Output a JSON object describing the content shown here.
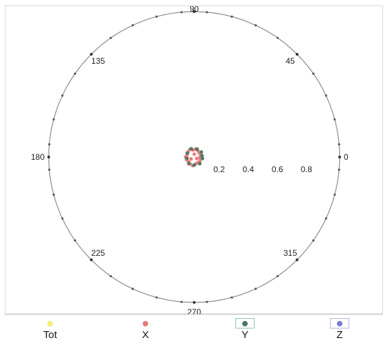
{
  "chart_data": {
    "type": "polar-scatter",
    "angle_ticks": [
      {
        "angle": 0,
        "label": "0"
      },
      {
        "angle": 45,
        "label": "45"
      },
      {
        "angle": 90,
        "label": "90"
      },
      {
        "angle": 135,
        "label": "135"
      },
      {
        "angle": 180,
        "label": "180"
      },
      {
        "angle": 225,
        "label": "225"
      },
      {
        "angle": 270,
        "label": "270"
      },
      {
        "angle": 315,
        "label": "315"
      }
    ],
    "radius_ticks": [
      "0.2",
      "0.4",
      "0.6",
      "0.8"
    ],
    "radius_tick_values": [
      0.2,
      0.4,
      0.6,
      0.8
    ],
    "rlim": [
      0,
      1
    ],
    "series": [
      {
        "name": "Tot",
        "color": "#f2ee72",
        "points": []
      },
      {
        "name": "X",
        "color": "#e57b7b",
        "points": [
          {
            "theta": 0,
            "r": 0.04
          },
          {
            "theta": 20,
            "r": 0.05
          },
          {
            "theta": 40,
            "r": 0.045
          },
          {
            "theta": 60,
            "r": 0.05
          },
          {
            "theta": 80,
            "r": 0.055
          },
          {
            "theta": 100,
            "r": 0.05
          },
          {
            "theta": 120,
            "r": 0.06
          },
          {
            "theta": 140,
            "r": 0.055
          },
          {
            "theta": 160,
            "r": 0.05
          },
          {
            "theta": 180,
            "r": 0.06
          },
          {
            "theta": 200,
            "r": 0.055
          },
          {
            "theta": 220,
            "r": 0.05
          },
          {
            "theta": 240,
            "r": 0.055
          },
          {
            "theta": 260,
            "r": 0.06
          },
          {
            "theta": 280,
            "r": 0.05
          },
          {
            "theta": 300,
            "r": 0.045
          },
          {
            "theta": 320,
            "r": 0.05
          },
          {
            "theta": 340,
            "r": 0.045
          },
          {
            "theta": 90,
            "r": 0.02
          },
          {
            "theta": 210,
            "r": 0.025
          },
          {
            "theta": 330,
            "r": 0.02
          }
        ]
      },
      {
        "name": "Y",
        "color": "#4f7a62",
        "points": [
          {
            "theta": 10,
            "r": 0.055
          },
          {
            "theta": 35,
            "r": 0.06
          },
          {
            "theta": 70,
            "r": 0.058
          },
          {
            "theta": 110,
            "r": 0.06
          },
          {
            "theta": 150,
            "r": 0.055
          },
          {
            "theta": 190,
            "r": 0.05
          },
          {
            "theta": 230,
            "r": 0.058
          },
          {
            "theta": 270,
            "r": 0.055
          },
          {
            "theta": 310,
            "r": 0.06
          },
          {
            "theta": 350,
            "r": 0.058
          }
        ]
      },
      {
        "name": "Z",
        "color": "#7b78d6",
        "points": []
      }
    ],
    "ring_markers_deg": [
      5,
      15,
      25,
      35,
      55,
      65,
      75,
      85,
      95,
      105,
      115,
      125,
      145,
      155,
      165,
      175,
      185,
      195,
      205,
      215,
      235,
      245,
      255,
      265,
      275,
      285,
      295,
      305,
      325,
      335,
      345,
      355
    ],
    "grid": false,
    "legend_position": "bottom"
  },
  "legend": {
    "items": [
      {
        "label": "Tot",
        "color": "#f2ee72"
      },
      {
        "label": "X",
        "color": "#e57b7b"
      },
      {
        "label": "Y",
        "color": "#4f7a62"
      },
      {
        "label": "Z",
        "color": "#7b78d6"
      }
    ]
  }
}
